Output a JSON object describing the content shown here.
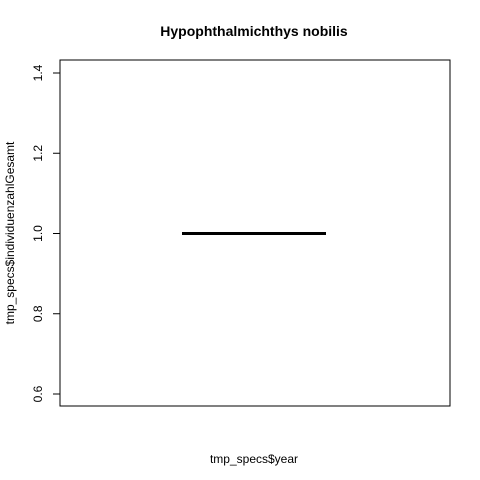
{
  "chart_data": {
    "type": "line",
    "title": "Hypophthalmichthys nobilis",
    "xlabel": "tmp_specs$year",
    "ylabel": "tmp_specs$individuenzahlGesamt",
    "ylim": [
      0.6,
      1.4
    ],
    "y_ticks": [
      "0.6",
      "0.8",
      "1.0",
      "1.2",
      "1.4"
    ],
    "x_ticks": [],
    "series": [
      {
        "values": [
          1.0,
          1.0
        ]
      }
    ],
    "line_color": "#000000",
    "grid": false,
    "legend": "none"
  }
}
